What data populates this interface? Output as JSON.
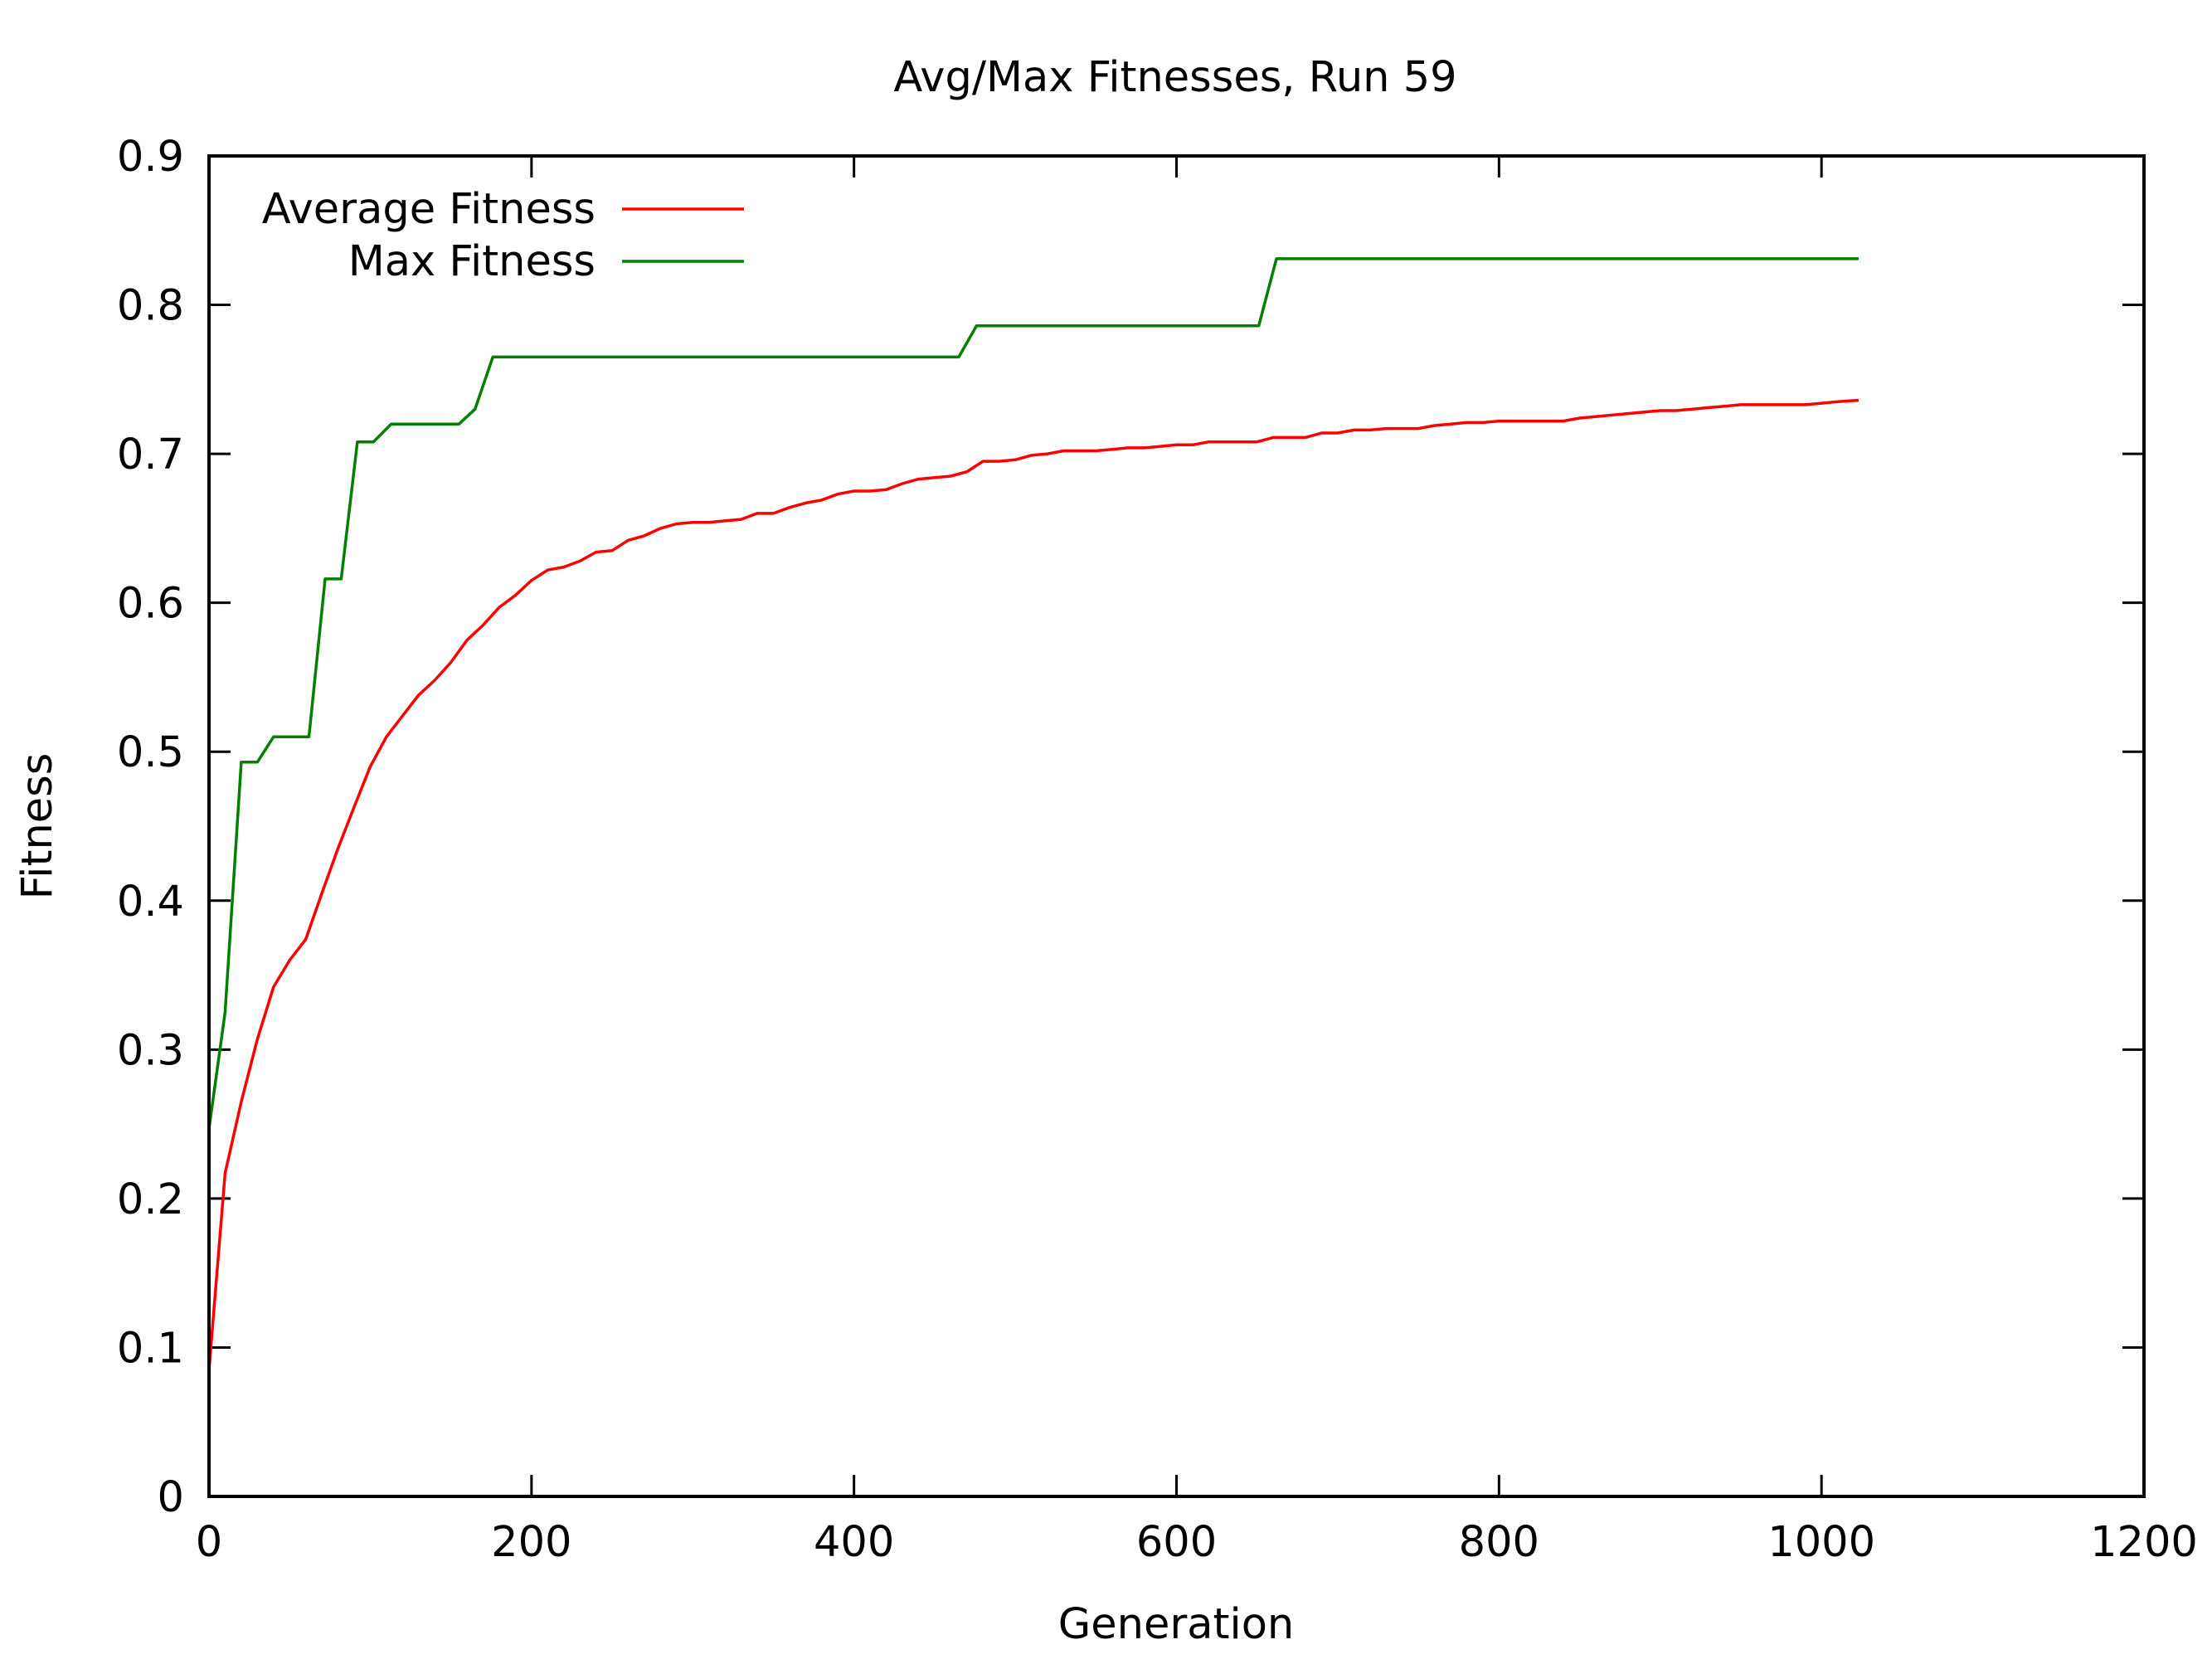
{
  "chart_data": {
    "type": "line",
    "title": "Avg/Max Fitnesses, Run 59",
    "xlabel": "Generation",
    "ylabel": "Fitness",
    "xlim": [
      0,
      1200
    ],
    "ylim": [
      0,
      0.9
    ],
    "xticks": [
      0,
      200,
      400,
      600,
      800,
      1000,
      1200
    ],
    "yticks": [
      0,
      0.1,
      0.2,
      0.3,
      0.4,
      0.5,
      0.6,
      0.7,
      0.8,
      0.9
    ],
    "x_tick_labels": [
      "0",
      "200",
      "400",
      "600",
      "800",
      "1000",
      "1200"
    ],
    "y_tick_labels": [
      "0",
      "0.1",
      "0.2",
      "0.3",
      "0.4",
      "0.5",
      "0.6",
      "0.7",
      "0.8",
      "0.9"
    ],
    "grid": false,
    "legend_position": "top-left",
    "series": [
      {
        "name": "Average Fitness",
        "color": "#ff0000",
        "x": [
          0,
          10,
          20,
          30,
          40,
          50,
          60,
          70,
          80,
          90,
          100,
          110,
          120,
          130,
          140,
          150,
          160,
          170,
          180,
          190,
          200,
          210,
          220,
          230,
          240,
          250,
          260,
          270,
          280,
          290,
          300,
          310,
          320,
          330,
          340,
          350,
          360,
          370,
          380,
          390,
          400,
          410,
          420,
          430,
          440,
          450,
          460,
          470,
          480,
          490,
          500,
          510,
          520,
          530,
          540,
          550,
          560,
          570,
          580,
          590,
          600,
          610,
          620,
          630,
          640,
          650,
          660,
          670,
          680,
          690,
          700,
          710,
          720,
          730,
          740,
          750,
          760,
          770,
          780,
          790,
          800,
          810,
          820,
          830,
          840,
          850,
          860,
          870,
          880,
          890,
          900,
          910,
          920,
          930,
          940,
          950,
          960,
          970,
          980,
          990,
          1000,
          1010,
          1023
        ],
        "y": [
          0.085,
          0.217,
          0.265,
          0.307,
          0.342,
          0.36,
          0.374,
          0.405,
          0.435,
          0.463,
          0.49,
          0.51,
          0.524,
          0.538,
          0.548,
          0.56,
          0.575,
          0.585,
          0.597,
          0.605,
          0.615,
          0.622,
          0.624,
          0.628,
          0.634,
          0.635,
          0.642,
          0.645,
          0.65,
          0.653,
          0.654,
          0.654,
          0.655,
          0.656,
          0.66,
          0.66,
          0.664,
          0.667,
          0.669,
          0.673,
          0.675,
          0.675,
          0.676,
          0.68,
          0.683,
          0.684,
          0.685,
          0.688,
          0.695,
          0.695,
          0.696,
          0.699,
          0.7,
          0.702,
          0.702,
          0.702,
          0.703,
          0.704,
          0.704,
          0.705,
          0.706,
          0.706,
          0.708,
          0.708,
          0.708,
          0.708,
          0.711,
          0.711,
          0.711,
          0.714,
          0.714,
          0.716,
          0.716,
          0.717,
          0.717,
          0.717,
          0.719,
          0.72,
          0.721,
          0.721,
          0.722,
          0.722,
          0.722,
          0.722,
          0.722,
          0.724,
          0.725,
          0.726,
          0.727,
          0.728,
          0.729,
          0.729,
          0.73,
          0.731,
          0.732,
          0.733,
          0.733,
          0.733,
          0.733,
          0.733,
          0.734,
          0.735,
          0.736
        ]
      },
      {
        "name": "Max Fitness",
        "color": "#008000",
        "x": [
          0,
          10,
          20,
          30,
          40,
          50,
          62,
          72,
          82,
          92,
          102,
          113,
          125,
          155,
          165,
          176,
          200,
          465,
          476,
          500,
          651,
          662,
          800,
          1023
        ],
        "y": [
          0.247,
          0.325,
          0.493,
          0.493,
          0.51,
          0.51,
          0.51,
          0.616,
          0.616,
          0.708,
          0.708,
          0.72,
          0.72,
          0.72,
          0.73,
          0.765,
          0.765,
          0.765,
          0.786,
          0.786,
          0.786,
          0.831,
          0.831,
          0.831
        ]
      }
    ]
  }
}
